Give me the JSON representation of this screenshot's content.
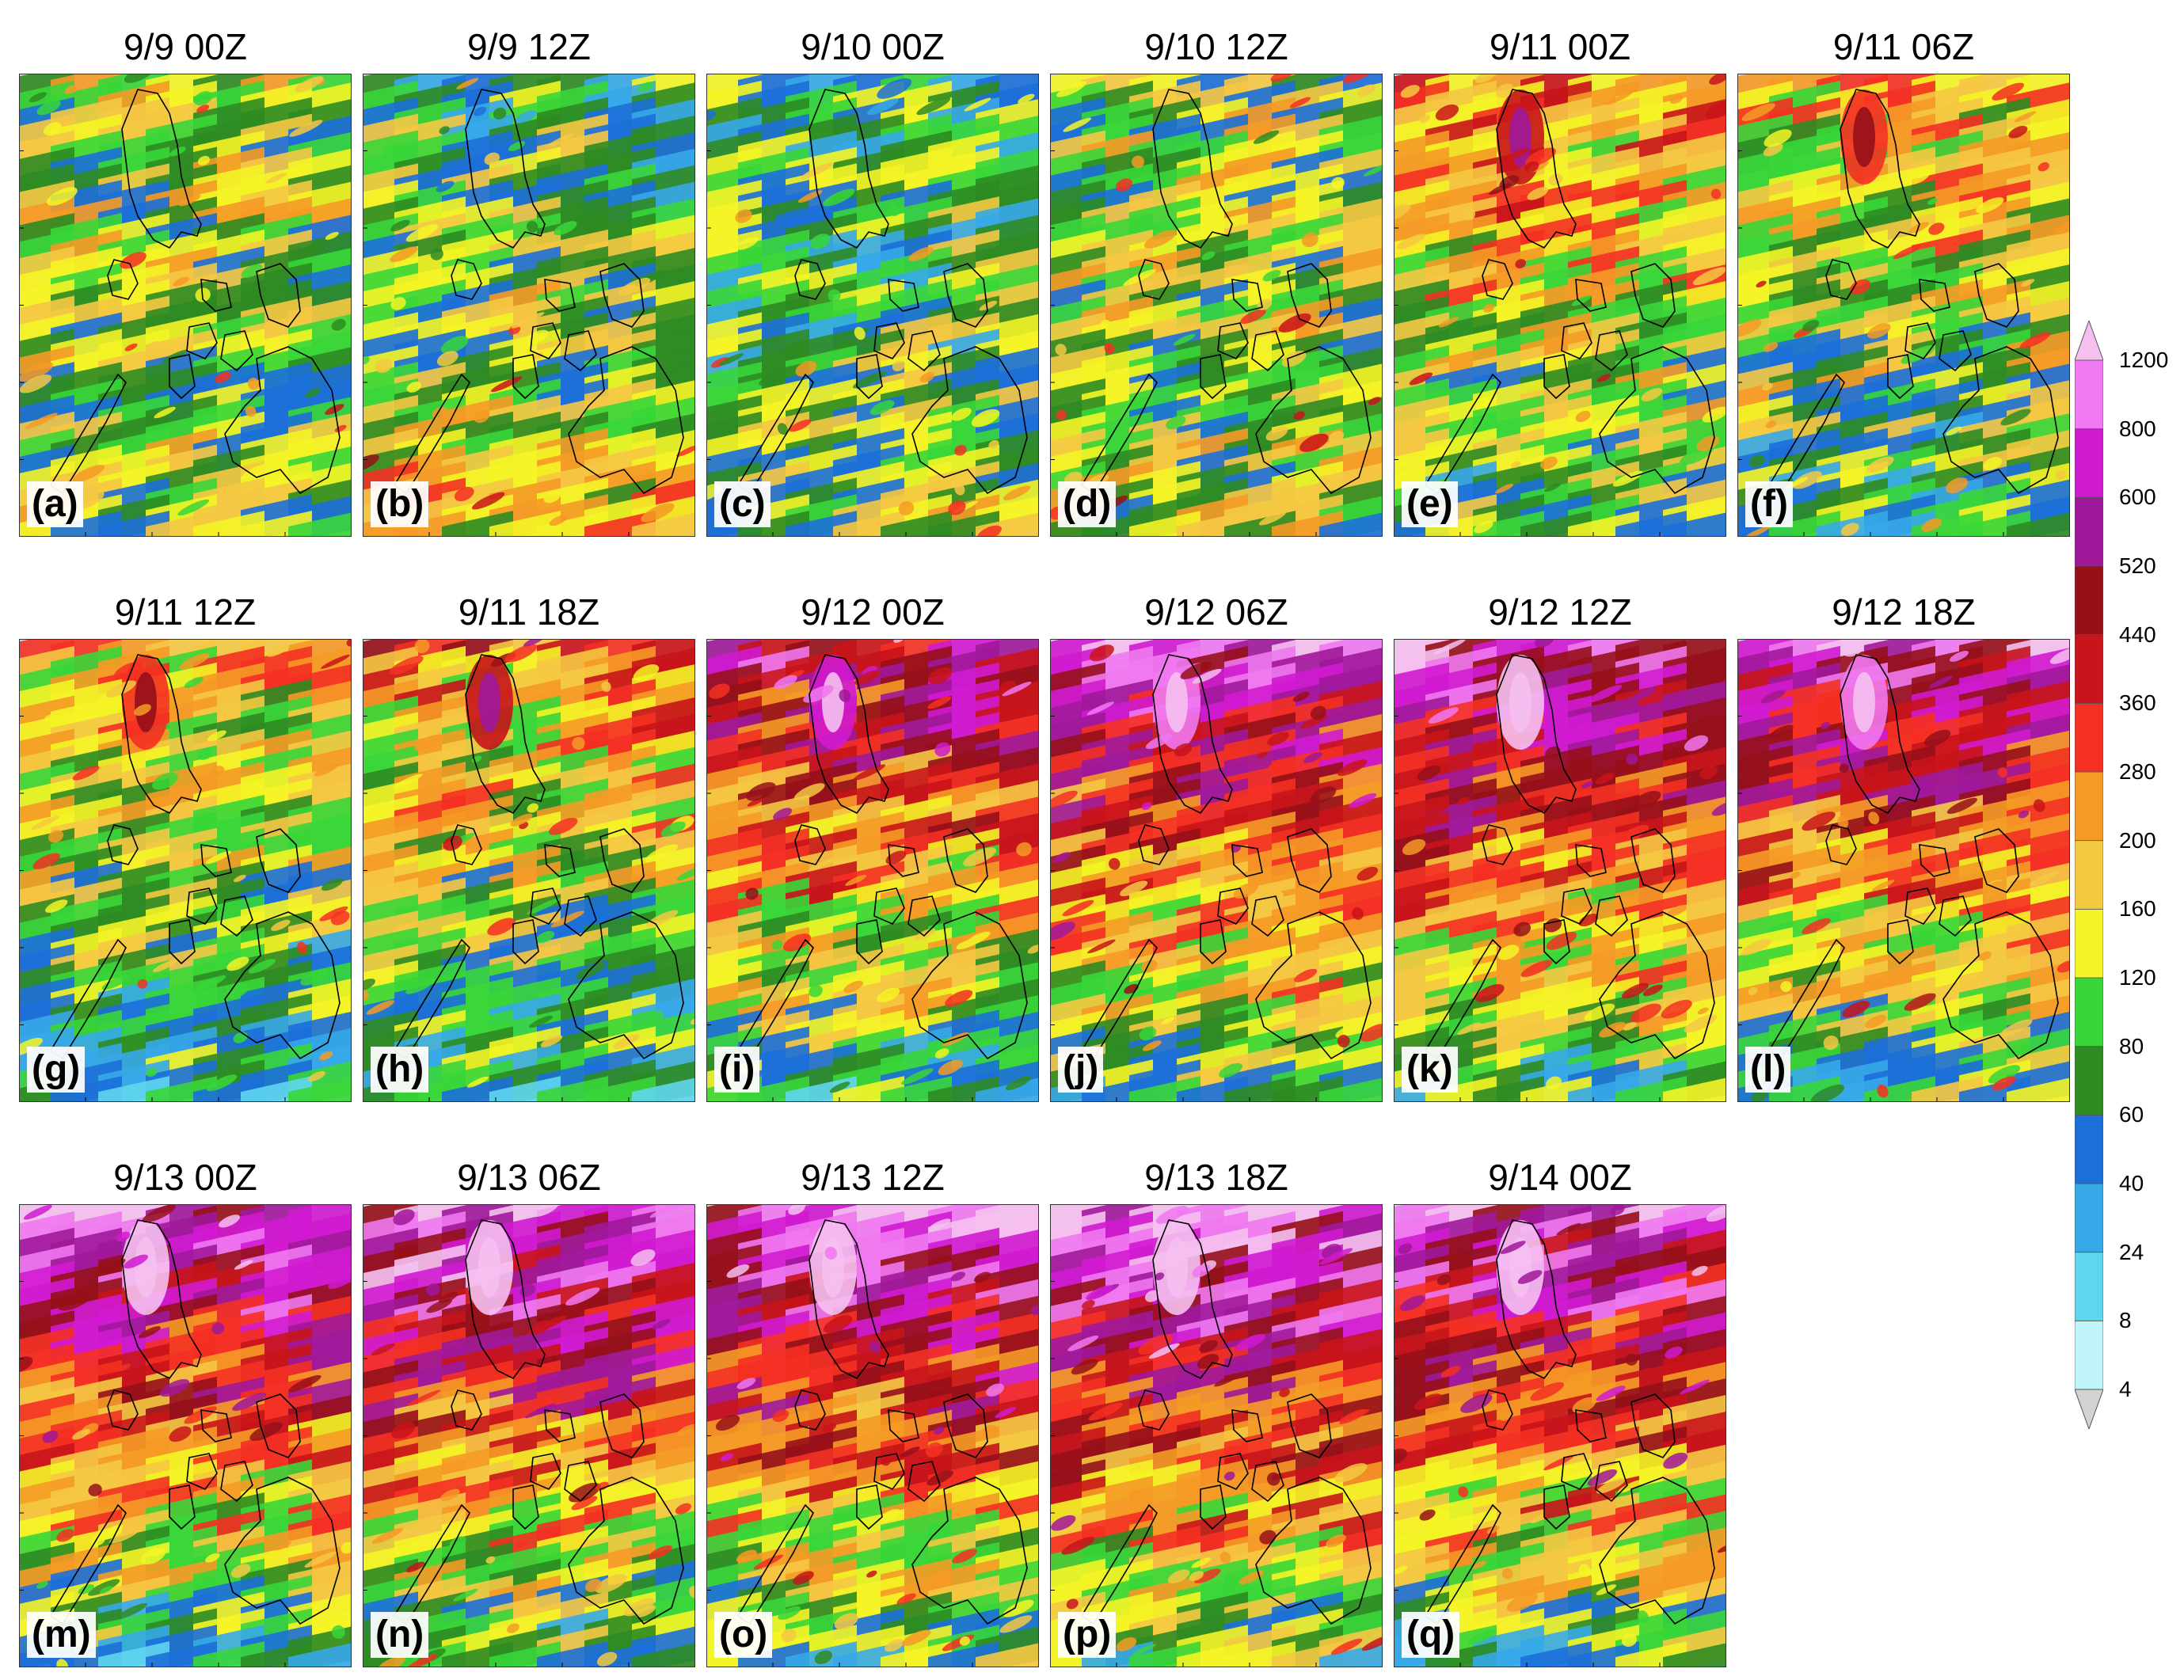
{
  "panels": [
    {
      "letter": "(a)",
      "title": "9/9 00Z",
      "north": 0.38,
      "south": 0.45,
      "seed": 3
    },
    {
      "letter": "(b)",
      "title": "9/9 12Z",
      "north": 0.3,
      "south": 0.55,
      "seed": 7
    },
    {
      "letter": "(c)",
      "title": "9/10 00Z",
      "north": 0.3,
      "south": 0.45,
      "seed": 11
    },
    {
      "letter": "(d)",
      "title": "9/10 12Z",
      "north": 0.38,
      "south": 0.5,
      "seed": 13
    },
    {
      "letter": "(e)",
      "title": "9/11 00Z",
      "north": 0.55,
      "south": 0.4,
      "seed": 17
    },
    {
      "letter": "(f)",
      "title": "9/11 06Z",
      "north": 0.48,
      "south": 0.38,
      "seed": 19
    },
    {
      "letter": "(g)",
      "title": "9/11 12Z",
      "north": 0.48,
      "south": 0.35,
      "seed": 23
    },
    {
      "letter": "(h)",
      "title": "9/11 18Z",
      "north": 0.55,
      "south": 0.3,
      "seed": 29
    },
    {
      "letter": "(i)",
      "title": "9/12 00Z",
      "north": 0.75,
      "south": 0.35,
      "seed": 31
    },
    {
      "letter": "(j)",
      "title": "9/12 06Z",
      "north": 0.8,
      "south": 0.4,
      "seed": 37
    },
    {
      "letter": "(k)",
      "title": "9/12 12Z",
      "north": 0.82,
      "south": 0.38,
      "seed": 41
    },
    {
      "letter": "(l)",
      "title": "9/12 18Z",
      "north": 0.8,
      "south": 0.38,
      "seed": 43
    },
    {
      "letter": "(m)",
      "title": "9/13 00Z",
      "north": 0.85,
      "south": 0.35,
      "seed": 47
    },
    {
      "letter": "(n)",
      "title": "9/13 06Z",
      "north": 0.88,
      "south": 0.35,
      "seed": 53
    },
    {
      "letter": "(o)",
      "title": "9/13 12Z",
      "north": 0.88,
      "south": 0.38,
      "seed": 59
    },
    {
      "letter": "(p)",
      "title": "9/13 18Z",
      "north": 0.88,
      "south": 0.4,
      "seed": 61
    },
    {
      "letter": "(q)",
      "title": "9/14 00Z",
      "north": 0.85,
      "south": 0.38,
      "seed": 67
    }
  ],
  "colorbar": {
    "ticks": [
      "4",
      "8",
      "24",
      "40",
      "60",
      "80",
      "120",
      "160",
      "200",
      "280",
      "360",
      "440",
      "520",
      "600",
      "800",
      "1200"
    ],
    "colors": [
      "#d3d3d3",
      "#bff5f8",
      "#5fd6f0",
      "#36a8e8",
      "#1c6fd8",
      "#2e8b22",
      "#38d638",
      "#f4f426",
      "#f5c842",
      "#f59a26",
      "#f43022",
      "#c8141a",
      "#96101a",
      "#a0189a",
      "#d01ad0",
      "#f078f0",
      "#f5c0f0"
    ],
    "top_color": "#f5c0f0",
    "bottom_color": "#d3d3d3"
  }
}
